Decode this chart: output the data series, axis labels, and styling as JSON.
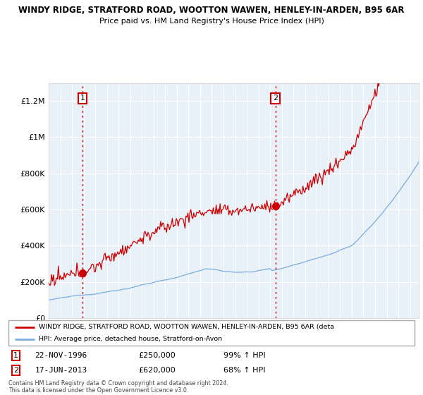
{
  "title_line1": "WINDY RIDGE, STRATFORD ROAD, WOOTTON WAWEN, HENLEY-IN-ARDEN, B95 6AR",
  "title_line2": "Price paid vs. HM Land Registry's House Price Index (HPI)",
  "ylim": [
    0,
    1300000
  ],
  "yticks": [
    0,
    200000,
    400000,
    600000,
    800000,
    1000000,
    1200000
  ],
  "ytick_labels": [
    "£0",
    "£200K",
    "£400K",
    "£600K",
    "£800K",
    "£1M",
    "£1.2M"
  ],
  "xlim_start": 1994.0,
  "xlim_end": 2025.75,
  "xticks": [
    1994,
    1995,
    1996,
    1997,
    1998,
    1999,
    2000,
    2001,
    2002,
    2003,
    2004,
    2005,
    2006,
    2007,
    2008,
    2009,
    2010,
    2011,
    2012,
    2013,
    2014,
    2015,
    2016,
    2017,
    2018,
    2019,
    2020,
    2021,
    2022,
    2023,
    2024,
    2025
  ],
  "property_color": "#cc0000",
  "hpi_color": "#7aade0",
  "annotation_color": "#cc0000",
  "purchase1_year": 1996.9,
  "purchase1_price": 250000,
  "purchase1_label": "1",
  "purchase2_year": 2013.46,
  "purchase2_price": 620000,
  "purchase2_label": "2",
  "plot_bg_color": "#e8f0f8",
  "legend_property": "WINDY RIDGE, STRATFORD ROAD, WOOTTON WAWEN, HENLEY-IN-ARDEN, B95 6AR (deta",
  "legend_hpi": "HPI: Average price, detached house, Stratford-on-Avon",
  "table_row1": [
    "1",
    "22-NOV-1996",
    "£250,000",
    "99% ↑ HPI"
  ],
  "table_row2": [
    "2",
    "17-JUN-2013",
    "£620,000",
    "68% ↑ HPI"
  ],
  "footnote": "Contains HM Land Registry data © Crown copyright and database right 2024.\nThis data is licensed under the Open Government Licence v3.0."
}
